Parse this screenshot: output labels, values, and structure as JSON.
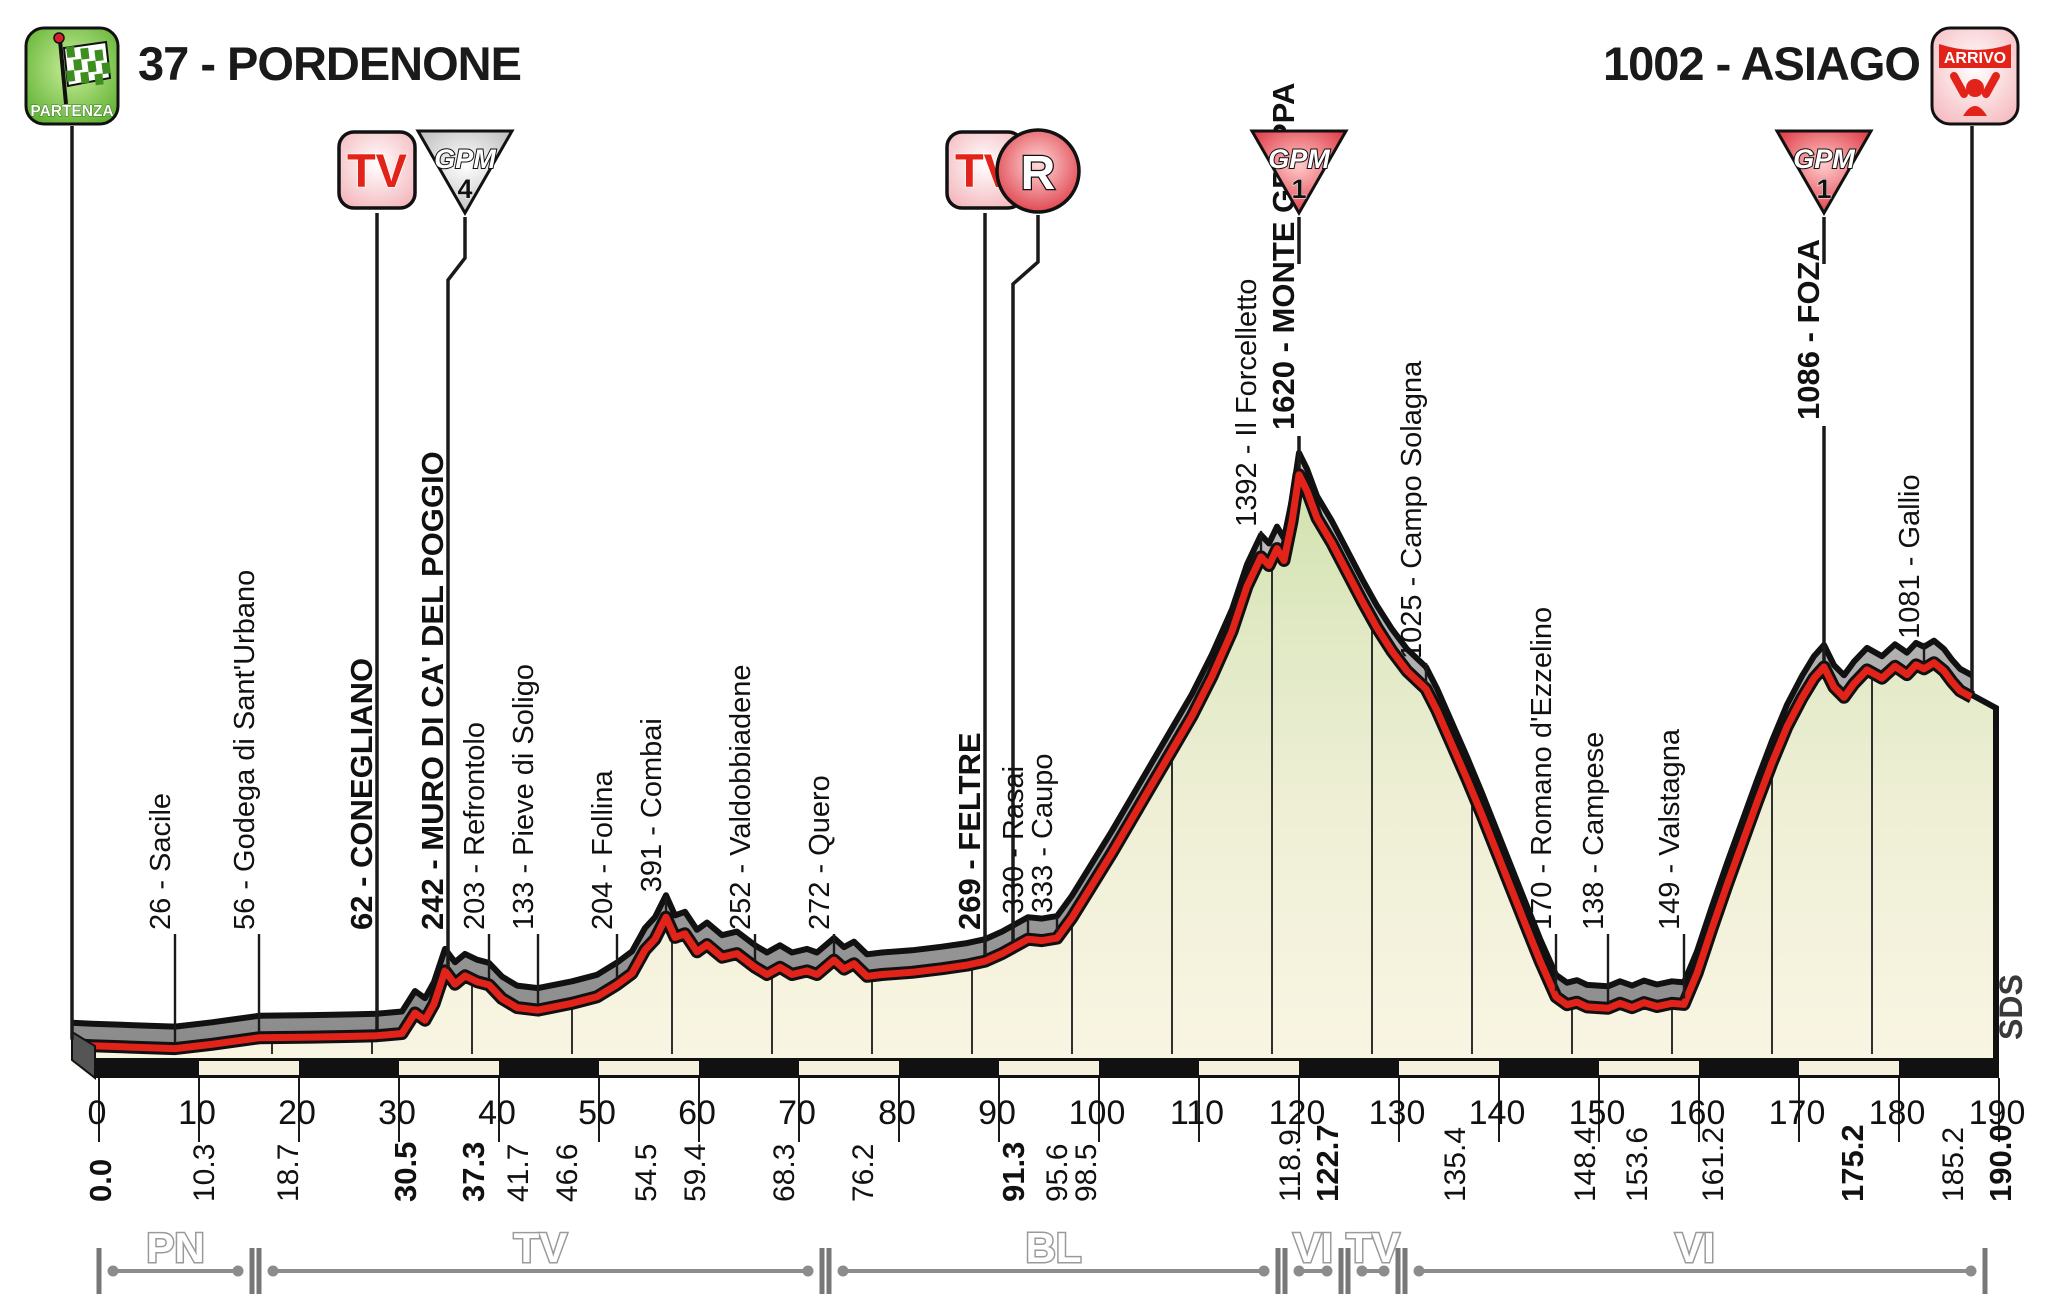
{
  "header": {
    "start_label": "37 - PORDENONE",
    "finish_label": "1002 - ASIAGO"
  },
  "branding": {
    "sds": "SDS"
  },
  "icons": {
    "partenza": {
      "label": "PARTENZA",
      "km": 0
    },
    "arrivo": {
      "label": "ARRIVO",
      "km": 190
    },
    "tv_label": "TV",
    "tv": [
      {
        "icon_km": 30.5,
        "point_km": 30.5
      },
      {
        "icon_km": 91.3,
        "point_km": 91.3
      }
    ],
    "feed": {
      "label": "R",
      "icon_km": 96.6,
      "point_km": 94.1
    },
    "gpm_label": "GPM",
    "gpm": [
      {
        "category": "4",
        "style": "silver",
        "icon_km": 39.3,
        "point_km": 37.6,
        "bent": true
      },
      {
        "category": "1",
        "style": "red",
        "icon_km": 122.7,
        "point_km": 122.7,
        "line_segments": [
          [
            217,
            264
          ],
          [
            436,
            469
          ]
        ]
      },
      {
        "category": "1",
        "style": "red",
        "icon_km": 175.2,
        "point_km": 175.2,
        "line_segments": [
          [
            217,
            264
          ],
          [
            426,
            661
          ]
        ]
      }
    ]
  },
  "chart_data": {
    "type": "area",
    "x_unit": "km",
    "y_unit": "m",
    "x_range": [
      0,
      190
    ],
    "y_range": [
      0,
      1620
    ],
    "axis_ticks": [
      0,
      10,
      20,
      30,
      40,
      50,
      60,
      70,
      80,
      90,
      100,
      110,
      120,
      130,
      140,
      150,
      160,
      170,
      180,
      190
    ],
    "km_labels": [
      {
        "km": 0,
        "label": "0.0",
        "bold": true
      },
      {
        "km": 10.3,
        "label": "10.3"
      },
      {
        "km": 18.7,
        "label": "18.7"
      },
      {
        "km": 30.5,
        "label": "30.5",
        "bold": true
      },
      {
        "km": 37.3,
        "label": "37.3",
        "bold": true
      },
      {
        "km": 41.7,
        "label": "41.7"
      },
      {
        "km": 46.6,
        "label": "46.6"
      },
      {
        "km": 54.5,
        "label": "54.5"
      },
      {
        "km": 59.4,
        "label": "59.4"
      },
      {
        "km": 68.3,
        "label": "68.3"
      },
      {
        "km": 76.2,
        "label": "76.2"
      },
      {
        "km": 91.3,
        "label": "91.3",
        "bold": true
      },
      {
        "km": 95.6,
        "label": "95.6"
      },
      {
        "km": 98.5,
        "label": "98.5"
      },
      {
        "km": 118.9,
        "label": "118.9"
      },
      {
        "km": 122.7,
        "label": "122.7",
        "bold": true
      },
      {
        "km": 135.4,
        "label": "135.4"
      },
      {
        "km": 148.4,
        "label": "148.4"
      },
      {
        "km": 153.6,
        "label": "153.6"
      },
      {
        "km": 161.2,
        "label": "161.2"
      },
      {
        "km": 175.2,
        "label": "175.2",
        "bold": true
      },
      {
        "km": 185.2,
        "label": "185.2"
      },
      {
        "km": 190,
        "label": "190.0",
        "bold": true
      }
    ],
    "waypoints": [
      {
        "km": 10.3,
        "elev": 26,
        "name": "26 - Sacile",
        "placement": "low"
      },
      {
        "km": 18.7,
        "elev": 56,
        "name": "56 - Godega di Sant'Urbano",
        "placement": "low"
      },
      {
        "km": 30.5,
        "elev": 62,
        "name": "62 - CONEGLIANO",
        "bold": true,
        "placement": "icon-line"
      },
      {
        "km": 37.3,
        "elev": 242,
        "name": "242 - MURO DI CA' DEL POGGIO",
        "bold": true,
        "placement": "icon-line",
        "x_km": 37.6
      },
      {
        "km": 41.7,
        "elev": 203,
        "name": "203 - Refrontolo",
        "placement": "low"
      },
      {
        "km": 46.6,
        "elev": 133,
        "name": "133 - Pieve di Soligo",
        "placement": "low"
      },
      {
        "km": 54.5,
        "elev": 204,
        "name": "204 - Follina",
        "placement": "low"
      },
      {
        "km": 59.4,
        "elev": 391,
        "name": "391 - Combai",
        "placement": "low"
      },
      {
        "km": 68.3,
        "elev": 252,
        "name": "252 - Valdobbiadene",
        "placement": "low"
      },
      {
        "km": 76.2,
        "elev": 272,
        "name": "272 - Quero",
        "placement": "low"
      },
      {
        "km": 91.3,
        "elev": 269,
        "name": "269 - FELTRE",
        "bold": true,
        "placement": "icon-line"
      },
      {
        "km": 95.6,
        "elev": 330,
        "name": "330 - Rasai",
        "placement": "low"
      },
      {
        "km": 98.5,
        "elev": 333,
        "name": "333 - Caupo",
        "placement": "low"
      },
      {
        "km": 118.9,
        "elev": 1392,
        "name": "1392 - Il Forcelletto",
        "placement": "peak"
      },
      {
        "km": 122.7,
        "elev": 1620,
        "name": "1620 - MONTE GRAPPA",
        "bold": true,
        "placement": "peak-gpm",
        "label_bottom": 430
      },
      {
        "km": 135.4,
        "elev": 1025,
        "name": "1025 - Campo Solagna",
        "placement": "peak"
      },
      {
        "km": 148.4,
        "elev": 170,
        "name": "170 - Romano d'Ezzelino",
        "placement": "low"
      },
      {
        "km": 153.6,
        "elev": 138,
        "name": "138 - Campese",
        "placement": "low"
      },
      {
        "km": 161.2,
        "elev": 149,
        "name": "149 - Valstagna",
        "placement": "low"
      },
      {
        "km": 175.2,
        "elev": 1086,
        "name": "1086 - FOZA",
        "bold": true,
        "placement": "peak-gpm",
        "label_bottom": 420
      },
      {
        "km": 185.2,
        "elev": 1081,
        "name": "1081 - Gallio",
        "placement": "peak"
      }
    ],
    "profile_points": [
      [
        0,
        37
      ],
      [
        2,
        34
      ],
      [
        5,
        31
      ],
      [
        10.3,
        26
      ],
      [
        14,
        38
      ],
      [
        18.7,
        56
      ],
      [
        24,
        58
      ],
      [
        28,
        60
      ],
      [
        30.5,
        62
      ],
      [
        33,
        68
      ],
      [
        34.3,
        125
      ],
      [
        35.3,
        105
      ],
      [
        36.2,
        150
      ],
      [
        37.3,
        242
      ],
      [
        38.3,
        205
      ],
      [
        39.3,
        228
      ],
      [
        40.5,
        212
      ],
      [
        41.7,
        203
      ],
      [
        43,
        165
      ],
      [
        44.5,
        140
      ],
      [
        46.6,
        133
      ],
      [
        50,
        152
      ],
      [
        52.5,
        170
      ],
      [
        54.5,
        204
      ],
      [
        56,
        235
      ],
      [
        57.3,
        300
      ],
      [
        58.3,
        330
      ],
      [
        59.4,
        391
      ],
      [
        60.3,
        335
      ],
      [
        61.3,
        345
      ],
      [
        62.5,
        295
      ],
      [
        63.5,
        315
      ],
      [
        65,
        280
      ],
      [
        66.5,
        290
      ],
      [
        68.3,
        252
      ],
      [
        69.5,
        232
      ],
      [
        70.8,
        252
      ],
      [
        72,
        232
      ],
      [
        73.5,
        242
      ],
      [
        74.5,
        232
      ],
      [
        76.2,
        272
      ],
      [
        77.2,
        247
      ],
      [
        78.2,
        262
      ],
      [
        79.5,
        227
      ],
      [
        81,
        232
      ],
      [
        84,
        238
      ],
      [
        87,
        248
      ],
      [
        89.5,
        258
      ],
      [
        91.3,
        269
      ],
      [
        93,
        290
      ],
      [
        95.6,
        330
      ],
      [
        97,
        326
      ],
      [
        98.5,
        333
      ],
      [
        100,
        390
      ],
      [
        102,
        480
      ],
      [
        104,
        570
      ],
      [
        106,
        665
      ],
      [
        108,
        760
      ],
      [
        110,
        855
      ],
      [
        112,
        950
      ],
      [
        114,
        1060
      ],
      [
        116,
        1185
      ],
      [
        117.5,
        1310
      ],
      [
        118.9,
        1392
      ],
      [
        119.7,
        1368
      ],
      [
        120.5,
        1415
      ],
      [
        121.2,
        1382
      ],
      [
        122,
        1490
      ],
      [
        122.7,
        1620
      ],
      [
        123.5,
        1575
      ],
      [
        124.5,
        1500
      ],
      [
        126,
        1430
      ],
      [
        127.5,
        1350
      ],
      [
        129,
        1270
      ],
      [
        130.5,
        1195
      ],
      [
        132,
        1130
      ],
      [
        133.5,
        1075
      ],
      [
        135.4,
        1025
      ],
      [
        136.5,
        965
      ],
      [
        138,
        870
      ],
      [
        139.5,
        775
      ],
      [
        141,
        675
      ],
      [
        142.5,
        570
      ],
      [
        144,
        465
      ],
      [
        145.5,
        360
      ],
      [
        146.8,
        270
      ],
      [
        148.4,
        170
      ],
      [
        149.5,
        148
      ],
      [
        150.5,
        155
      ],
      [
        151.5,
        142
      ],
      [
        153.6,
        138
      ],
      [
        154.8,
        152
      ],
      [
        156,
        140
      ],
      [
        157.2,
        154
      ],
      [
        158.5,
        143
      ],
      [
        160,
        152
      ],
      [
        161.2,
        149
      ],
      [
        162.5,
        235
      ],
      [
        164,
        360
      ],
      [
        165.5,
        480
      ],
      [
        167,
        595
      ],
      [
        168.5,
        710
      ],
      [
        170,
        820
      ],
      [
        171.5,
        920
      ],
      [
        173,
        1000
      ],
      [
        174.2,
        1055
      ],
      [
        175.2,
        1086
      ],
      [
        176.2,
        1030
      ],
      [
        177.2,
        1002
      ],
      [
        178.2,
        1040
      ],
      [
        179.5,
        1078
      ],
      [
        181,
        1055
      ],
      [
        182.3,
        1088
      ],
      [
        183.5,
        1065
      ],
      [
        184.4,
        1092
      ],
      [
        185.2,
        1081
      ],
      [
        186.2,
        1098
      ],
      [
        187.2,
        1075
      ],
      [
        188,
        1045
      ],
      [
        188.8,
        1020
      ],
      [
        190,
        1002
      ]
    ],
    "provinces": [
      {
        "label": "PN",
        "from": 0,
        "to": 15.3
      },
      {
        "label": "TV",
        "from": 16.0,
        "to": 72.3
      },
      {
        "label": "BL",
        "from": 73.0,
        "to": 117.9
      },
      {
        "label": "VI",
        "from": 118.6,
        "to": 124.2
      },
      {
        "label": "TV",
        "from": 124.9,
        "to": 129.9
      },
      {
        "label": "VI",
        "from": 130.6,
        "to": 188.6
      }
    ],
    "colors": {
      "route_red": "#e2231a",
      "band_gray": "#a3a3a3",
      "fill_high": "#cde0a8",
      "fill_low": "#f9f5e3",
      "outline": "#111111",
      "province_gray": "#8c8c8c",
      "partenza_green": "#54a926"
    },
    "legend_position": "none",
    "grid": "vertical-10km"
  }
}
